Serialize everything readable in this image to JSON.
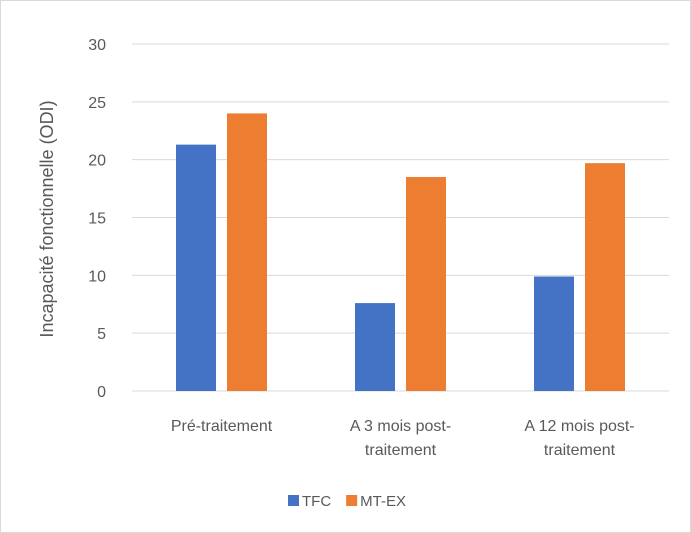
{
  "chart_data": {
    "type": "bar",
    "title": "",
    "xlabel": "",
    "ylabel": "Incapacité fonctionnelle (ODI)",
    "categories": [
      [
        "Pré-traitement"
      ],
      [
        "A 3 mois post-",
        "traitement"
      ],
      [
        "A 12 mois post-",
        "traitement"
      ]
    ],
    "series": [
      {
        "name": "TFC",
        "color": "#4472C4",
        "values": [
          21.3,
          7.6,
          9.9
        ]
      },
      {
        "name": "MT-EX",
        "color": "#ED7D31",
        "values": [
          24.0,
          18.5,
          19.7
        ]
      }
    ],
    "ylim": [
      0,
      30
    ],
    "yticks": [
      0,
      5,
      10,
      15,
      20,
      25,
      30
    ],
    "grid": true,
    "legend_position": "bottom"
  }
}
